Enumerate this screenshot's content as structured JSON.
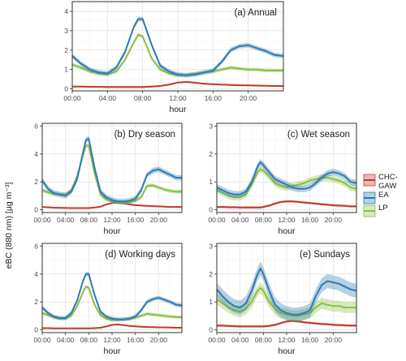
{
  "ylabel": "eBC (880 nm) [µg m⁻³]",
  "colors": {
    "CHC-GAW": "#c0392b",
    "EA": "#2f7bb3",
    "LP": "#8bbf45"
  },
  "legend": {
    "position": "right",
    "entries": [
      {
        "key": "CHC-GAW",
        "lines": [
          "CHC-",
          "GAW"
        ]
      },
      {
        "key": "EA",
        "lines": [
          "EA"
        ]
      },
      {
        "key": "LP",
        "lines": [
          "LP"
        ]
      }
    ]
  },
  "chart_data": [
    {
      "type": "line",
      "title": "(a) Annual",
      "xlabel": "hour",
      "xticks": [
        "00:00",
        "04:00",
        "08:00",
        "12:00",
        "16:00",
        "20:00"
      ],
      "xlim": [
        0,
        24
      ],
      "ylim": [
        -0.1,
        4.5
      ],
      "yticks": [
        0,
        1,
        2,
        3,
        4
      ],
      "grid": true,
      "x": [
        0,
        1,
        2,
        3,
        4,
        5,
        6,
        7,
        7.5,
        8,
        9,
        10,
        11,
        12,
        13,
        14,
        15,
        16,
        17,
        18,
        19,
        20,
        21,
        22,
        23,
        24
      ],
      "series": [
        {
          "key": "EA",
          "band": 0.12,
          "values": [
            1.7,
            1.3,
            1.0,
            0.85,
            0.8,
            1.1,
            1.9,
            3.2,
            3.6,
            3.6,
            2.3,
            1.2,
            0.9,
            0.75,
            0.7,
            0.75,
            0.85,
            0.95,
            1.4,
            2.0,
            2.2,
            2.25,
            2.1,
            1.95,
            1.75,
            1.7
          ]
        },
        {
          "key": "LP",
          "band": 0.1,
          "values": [
            1.25,
            1.1,
            0.9,
            0.8,
            0.75,
            0.9,
            1.5,
            2.4,
            2.8,
            2.7,
            1.6,
            1.0,
            0.8,
            0.7,
            0.72,
            0.78,
            0.85,
            0.9,
            1.0,
            1.1,
            1.05,
            1.0,
            1.0,
            0.95,
            0.95,
            0.95
          ]
        },
        {
          "key": "CHC-GAW",
          "band": 0.04,
          "values": [
            0.12,
            0.12,
            0.11,
            0.11,
            0.1,
            0.1,
            0.1,
            0.1,
            0.1,
            0.1,
            0.12,
            0.15,
            0.22,
            0.33,
            0.36,
            0.32,
            0.27,
            0.24,
            0.22,
            0.2,
            0.19,
            0.18,
            0.17,
            0.16,
            0.15,
            0.15
          ]
        }
      ]
    },
    {
      "type": "line",
      "title": "(b) Dry season",
      "xlabel": "hour",
      "xticks": [
        "00:00",
        "04:00",
        "08:00",
        "12:00",
        "16:00",
        "20:00"
      ],
      "xlim": [
        0,
        24
      ],
      "ylim": [
        -0.2,
        6.2
      ],
      "yticks": [
        0,
        2,
        4,
        6
      ],
      "grid": true,
      "x": [
        0,
        1,
        2,
        3,
        4,
        5,
        6,
        7,
        7.5,
        8,
        9,
        10,
        11,
        12,
        13,
        14,
        15,
        16,
        17,
        18,
        19,
        20,
        21,
        22,
        23,
        24
      ],
      "series": [
        {
          "key": "EA",
          "band": 0.2,
          "values": [
            2.1,
            1.5,
            1.2,
            1.1,
            1.0,
            1.3,
            2.2,
            4.1,
            5.0,
            5.1,
            3.0,
            1.3,
            0.9,
            0.7,
            0.6,
            0.6,
            0.65,
            0.8,
            1.4,
            2.5,
            2.8,
            2.9,
            2.7,
            2.5,
            2.3,
            2.3
          ]
        },
        {
          "key": "LP",
          "band": 0.15,
          "values": [
            1.4,
            1.25,
            1.15,
            1.1,
            1.1,
            1.4,
            2.4,
            3.9,
            4.6,
            4.6,
            2.6,
            1.1,
            0.75,
            0.6,
            0.55,
            0.5,
            0.55,
            0.65,
            0.9,
            1.7,
            1.75,
            1.6,
            1.45,
            1.35,
            1.3,
            1.3
          ]
        },
        {
          "key": "CHC-GAW",
          "band": 0.05,
          "values": [
            0.2,
            0.18,
            0.15,
            0.14,
            0.13,
            0.12,
            0.12,
            0.12,
            0.12,
            0.12,
            0.16,
            0.22,
            0.38,
            0.48,
            0.52,
            0.45,
            0.38,
            0.33,
            0.3,
            0.28,
            0.26,
            0.24,
            0.22,
            0.2,
            0.2,
            0.2
          ]
        }
      ]
    },
    {
      "type": "line",
      "title": "(c) Wet season",
      "xlabel": "hour",
      "xticks": [
        "00:00",
        "04:00",
        "08:00",
        "12:00",
        "16:00",
        "20:00"
      ],
      "xlim": [
        0,
        24
      ],
      "ylim": [
        -0.1,
        3.1
      ],
      "yticks": [
        0,
        1,
        2,
        3
      ],
      "grid": true,
      "x": [
        0,
        1,
        2,
        3,
        4,
        5,
        6,
        7,
        7.5,
        8,
        9,
        10,
        11,
        12,
        13,
        14,
        15,
        16,
        17,
        18,
        19,
        20,
        21,
        22,
        23,
        24
      ],
      "series": [
        {
          "key": "EA",
          "band": 0.12,
          "values": [
            0.8,
            0.7,
            0.6,
            0.55,
            0.55,
            0.65,
            1.0,
            1.55,
            1.7,
            1.6,
            1.35,
            1.1,
            1.0,
            0.9,
            0.8,
            0.75,
            0.75,
            0.8,
            0.95,
            1.15,
            1.3,
            1.35,
            1.3,
            1.2,
            1.0,
            0.95
          ]
        },
        {
          "key": "LP",
          "band": 0.12,
          "values": [
            0.7,
            0.6,
            0.5,
            0.45,
            0.45,
            0.55,
            0.9,
            1.35,
            1.45,
            1.4,
            1.2,
            0.95,
            0.85,
            0.8,
            0.85,
            0.9,
            0.95,
            1.05,
            1.1,
            1.15,
            1.15,
            1.1,
            1.05,
            0.95,
            0.8,
            0.75
          ]
        },
        {
          "key": "CHC-GAW",
          "band": 0.04,
          "values": [
            0.1,
            0.1,
            0.09,
            0.09,
            0.08,
            0.08,
            0.08,
            0.08,
            0.08,
            0.1,
            0.15,
            0.22,
            0.28,
            0.3,
            0.3,
            0.28,
            0.26,
            0.24,
            0.22,
            0.2,
            0.18,
            0.16,
            0.15,
            0.14,
            0.12,
            0.12
          ]
        }
      ]
    },
    {
      "type": "line",
      "title": "(d) Working days",
      "xlabel": "hour",
      "xticks": [
        "00:00",
        "04:00",
        "08:00",
        "12:00",
        "16:00",
        "20:00"
      ],
      "xlim": [
        0,
        24
      ],
      "ylim": [
        -0.2,
        6.2
      ],
      "yticks": [
        0,
        2,
        4,
        6
      ],
      "grid": true,
      "x": [
        0,
        1,
        2,
        3,
        4,
        5,
        6,
        7,
        7.5,
        8,
        9,
        10,
        11,
        12,
        13,
        14,
        15,
        16,
        17,
        18,
        19,
        20,
        21,
        22,
        23,
        24
      ],
      "series": [
        {
          "key": "EA",
          "band": 0.15,
          "values": [
            1.6,
            1.2,
            0.95,
            0.85,
            0.85,
            1.2,
            2.1,
            3.5,
            4.0,
            4.0,
            2.5,
            1.3,
            0.95,
            0.8,
            0.75,
            0.75,
            0.8,
            0.95,
            1.4,
            2.0,
            2.2,
            2.3,
            2.15,
            2.0,
            1.8,
            1.75
          ]
        },
        {
          "key": "LP",
          "band": 0.12,
          "values": [
            1.2,
            1.05,
            0.9,
            0.8,
            0.8,
            1.0,
            1.7,
            2.7,
            3.1,
            3.0,
            1.8,
            1.05,
            0.8,
            0.7,
            0.72,
            0.75,
            0.8,
            0.88,
            1.0,
            1.15,
            1.1,
            1.05,
            1.0,
            0.95,
            0.92,
            0.9
          ]
        },
        {
          "key": "CHC-GAW",
          "band": 0.04,
          "values": [
            0.12,
            0.12,
            0.11,
            0.1,
            0.1,
            0.1,
            0.1,
            0.1,
            0.1,
            0.1,
            0.12,
            0.15,
            0.24,
            0.35,
            0.38,
            0.34,
            0.28,
            0.25,
            0.22,
            0.2,
            0.19,
            0.18,
            0.17,
            0.16,
            0.15,
            0.15
          ]
        }
      ]
    },
    {
      "type": "line",
      "title": "(e) Sundays",
      "xlabel": "hour",
      "xticks": [
        "00:00",
        "04:00",
        "08:00",
        "12:00",
        "16:00",
        "20:00"
      ],
      "xlim": [
        0,
        24
      ],
      "ylim": [
        -0.1,
        3.1
      ],
      "yticks": [
        0,
        1,
        2,
        3
      ],
      "grid": true,
      "x": [
        0,
        1,
        2,
        3,
        4,
        5,
        6,
        7,
        7.5,
        8,
        9,
        10,
        11,
        12,
        13,
        14,
        15,
        16,
        17,
        18,
        19,
        20,
        21,
        22,
        23,
        24
      ],
      "series": [
        {
          "key": "EA",
          "band": 0.25,
          "values": [
            1.45,
            1.2,
            1.0,
            0.85,
            0.8,
            0.95,
            1.4,
            2.0,
            2.2,
            2.0,
            1.4,
            0.9,
            0.7,
            0.6,
            0.55,
            0.55,
            0.6,
            0.7,
            1.2,
            1.6,
            1.75,
            1.7,
            1.65,
            1.55,
            1.45,
            1.4
          ]
        },
        {
          "key": "LP",
          "band": 0.2,
          "values": [
            1.1,
            0.95,
            0.8,
            0.7,
            0.65,
            0.75,
            1.0,
            1.4,
            1.5,
            1.4,
            1.0,
            0.75,
            0.6,
            0.55,
            0.5,
            0.5,
            0.55,
            0.6,
            0.8,
            0.95,
            0.9,
            0.85,
            0.85,
            0.8,
            0.8,
            0.8
          ]
        },
        {
          "key": "CHC-GAW",
          "band": 0.04,
          "values": [
            0.15,
            0.15,
            0.14,
            0.13,
            0.12,
            0.12,
            0.12,
            0.12,
            0.12,
            0.12,
            0.14,
            0.18,
            0.24,
            0.3,
            0.32,
            0.3,
            0.27,
            0.25,
            0.23,
            0.21,
            0.2,
            0.18,
            0.17,
            0.16,
            0.15,
            0.15
          ]
        }
      ]
    }
  ]
}
